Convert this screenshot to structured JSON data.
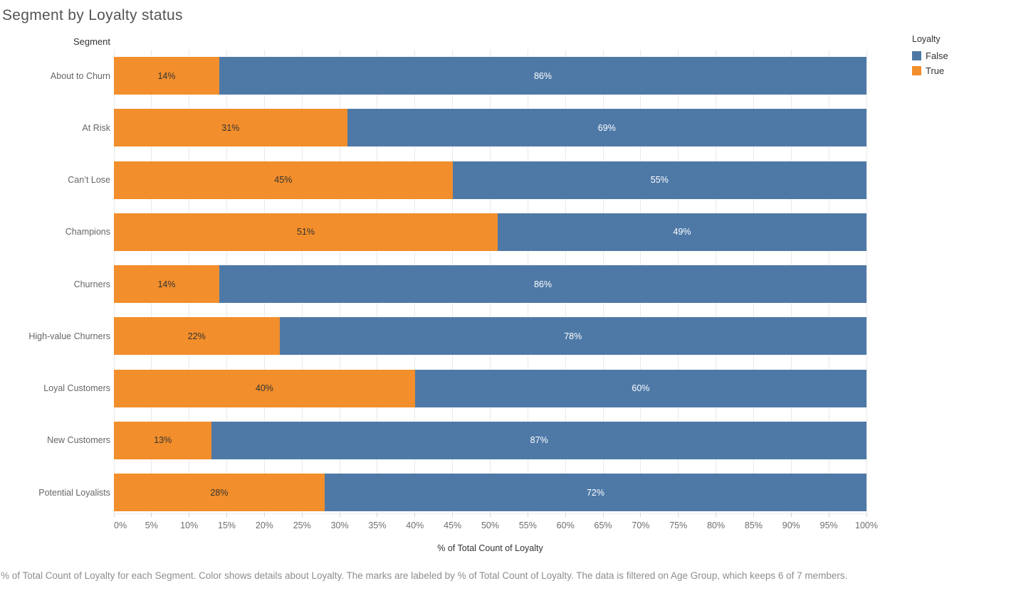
{
  "caption": "% of Total Count of Loyalty for each Segment.  Color shows details about Loyalty.  The marks are labeled by % of Total Count of Loyalty. The data is filtered on Age Group, which keeps 6 of 7 members.",
  "chart_data": {
    "type": "bar",
    "orientation": "horizontal",
    "stacked": true,
    "units": "percent",
    "title": "Segment by Loyalty status",
    "row_axis_header": "Segment",
    "xlabel": "% of Total Count of Loyalty",
    "xlim": [
      0,
      100
    ],
    "grid": true,
    "x_tick_labels": [
      "0%",
      "5%",
      "10%",
      "15%",
      "20%",
      "25%",
      "30%",
      "35%",
      "40%",
      "45%",
      "50%",
      "55%",
      "60%",
      "65%",
      "70%",
      "75%",
      "80%",
      "85%",
      "90%",
      "95%",
      "100%"
    ],
    "categories": [
      "About to Churn",
      "At Risk",
      "Can’t Lose",
      "Champions",
      "Churners",
      "High-value Churners",
      "Loyal Customers",
      "New Customers",
      "Potential Loyalists"
    ],
    "series": [
      {
        "name": "True",
        "color": "#f28e2b",
        "label_color": "#333333",
        "values": [
          14,
          31,
          45,
          51,
          14,
          22,
          40,
          13,
          28
        ]
      },
      {
        "name": "False",
        "color": "#4e79a7",
        "label_color": "#ffffff",
        "values": [
          86,
          69,
          55,
          49,
          86,
          78,
          60,
          87,
          72
        ]
      }
    ],
    "legend": {
      "title": "Loyalty",
      "position": "top-right",
      "entries": [
        {
          "label": "False",
          "color": "#4e79a7"
        },
        {
          "label": "True",
          "color": "#f28e2b"
        }
      ]
    },
    "colors": {
      "false_blue": "#4e79a7",
      "true_orange": "#f28e2b",
      "title_text": "#545454",
      "axis_text": "#666666",
      "header_text": "#333333",
      "caption_text": "#8e8e8e",
      "gridline": "#e9e9e9"
    }
  }
}
